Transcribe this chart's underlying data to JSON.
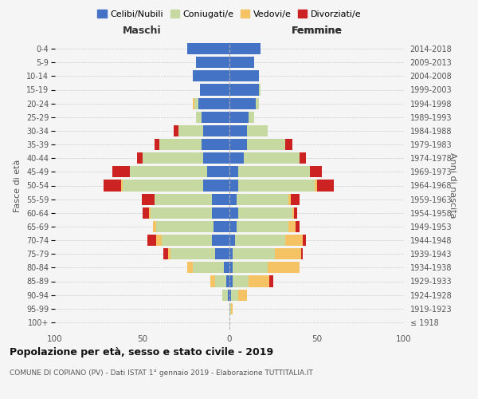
{
  "age_groups": [
    "100+",
    "95-99",
    "90-94",
    "85-89",
    "80-84",
    "75-79",
    "70-74",
    "65-69",
    "60-64",
    "55-59",
    "50-54",
    "45-49",
    "40-44",
    "35-39",
    "30-34",
    "25-29",
    "20-24",
    "15-19",
    "10-14",
    "5-9",
    "0-4"
  ],
  "birth_years": [
    "≤ 1918",
    "1919-1923",
    "1924-1928",
    "1929-1933",
    "1934-1938",
    "1939-1943",
    "1944-1948",
    "1949-1953",
    "1954-1958",
    "1959-1963",
    "1964-1968",
    "1969-1973",
    "1974-1978",
    "1979-1983",
    "1984-1988",
    "1989-1993",
    "1994-1998",
    "1999-2003",
    "2004-2008",
    "2009-2013",
    "2014-2018"
  ],
  "males": {
    "celibi": [
      0,
      0,
      1,
      2,
      3,
      8,
      10,
      9,
      10,
      10,
      15,
      13,
      15,
      16,
      15,
      16,
      18,
      17,
      21,
      19,
      24
    ],
    "coniugati": [
      0,
      0,
      3,
      6,
      18,
      26,
      29,
      33,
      35,
      33,
      46,
      44,
      35,
      24,
      14,
      3,
      2,
      0,
      0,
      0,
      0
    ],
    "vedovi": [
      0,
      0,
      0,
      3,
      3,
      1,
      3,
      2,
      1,
      0,
      1,
      0,
      0,
      0,
      0,
      0,
      1,
      0,
      0,
      0,
      0
    ],
    "divorziati": [
      0,
      0,
      0,
      0,
      0,
      3,
      5,
      0,
      4,
      7,
      10,
      10,
      3,
      3,
      3,
      0,
      0,
      0,
      0,
      0,
      0
    ]
  },
  "females": {
    "nubili": [
      0,
      0,
      1,
      2,
      2,
      2,
      3,
      4,
      5,
      4,
      5,
      5,
      8,
      10,
      10,
      11,
      15,
      17,
      17,
      14,
      18
    ],
    "coniugate": [
      0,
      1,
      4,
      9,
      20,
      24,
      29,
      30,
      31,
      30,
      44,
      41,
      32,
      22,
      12,
      3,
      2,
      1,
      0,
      0,
      0
    ],
    "vedove": [
      0,
      1,
      5,
      12,
      18,
      15,
      10,
      4,
      1,
      1,
      1,
      0,
      0,
      0,
      0,
      0,
      0,
      0,
      0,
      0,
      0
    ],
    "divorziate": [
      0,
      0,
      0,
      2,
      0,
      1,
      2,
      2,
      2,
      5,
      10,
      7,
      4,
      4,
      0,
      0,
      0,
      0,
      0,
      0,
      0
    ]
  },
  "colors": {
    "celibi": "#4472c4",
    "coniugati": "#c5d9a0",
    "vedovi": "#f5c264",
    "divorziati": "#cc2222"
  },
  "title": "Popolazione per età, sesso e stato civile - 2019",
  "subtitle": "COMUNE DI COPIANO (PV) - Dati ISTAT 1° gennaio 2019 - Elaborazione TUTTITALIA.IT",
  "xlabel_left": "Maschi",
  "xlabel_right": "Femmine",
  "ylabel_left": "Fasce di età",
  "ylabel_right": "Anni di nascita",
  "legend_labels": [
    "Celibi/Nubili",
    "Coniugati/e",
    "Vedovi/e",
    "Divorziati/e"
  ],
  "xlim": 100,
  "bg_color": "#f5f5f5"
}
